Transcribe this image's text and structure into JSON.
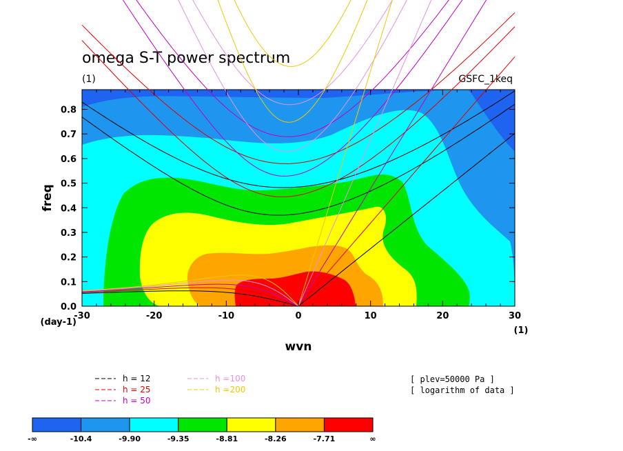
{
  "chart_data": {
    "type": "heatmap",
    "title": "omega S-T power spectrum",
    "subtitle": "(1)",
    "source_label": "GSFC_1keq",
    "xlabel": "wvn",
    "ylabel": "freq",
    "x_unit": "(1)",
    "y_unit": "(day-1)",
    "xlim": [
      -30,
      30
    ],
    "ylim": [
      0,
      0.88
    ],
    "x_ticks": [
      -30,
      -20,
      -10,
      0,
      10,
      20,
      30
    ],
    "x_tick_labels": [
      "-30",
      "-20",
      "-10",
      "0",
      "10",
      "20",
      "30"
    ],
    "y_ticks": [
      0.0,
      0.1,
      0.2,
      0.3,
      0.4,
      0.5,
      0.6,
      0.7,
      0.8
    ],
    "y_tick_labels": [
      "0.0",
      "0.1",
      "0.2",
      "0.3",
      "0.4",
      "0.5",
      "0.6",
      "0.7",
      "0.8"
    ],
    "field_note": "[ logarithm of data ]",
    "level_note": "[ plev=50000 Pa ]",
    "contour_levels": [
      "-∞",
      "-10.4",
      "-9.90",
      "-9.35",
      "-8.81",
      "-8.26",
      "-7.71",
      "∞"
    ],
    "colors": [
      "#1e64f0",
      "#1e96f0",
      "#00ffff",
      "#00e600",
      "#ffff00",
      "#ffa500",
      "#ff0000"
    ],
    "dispersion_curves": [
      {
        "label": "h = 12",
        "equiv_depth": 12,
        "color": "#000000"
      },
      {
        "label": "h = 25",
        "equiv_depth": 25,
        "color": "#e00000"
      },
      {
        "label": "h = 50",
        "equiv_depth": 50,
        "color": "#c000c0"
      },
      {
        "label": "h =100",
        "equiv_depth": 100,
        "color": "#e690e6"
      },
      {
        "label": "h =200",
        "equiv_depth": 200,
        "color": "#f0c800"
      }
    ],
    "colorbar_colors": [
      "#1e64f0",
      "#1e96f0",
      "#00ffff",
      "#00e600",
      "#ffff00",
      "#ffa500",
      "#ff0000"
    ]
  }
}
